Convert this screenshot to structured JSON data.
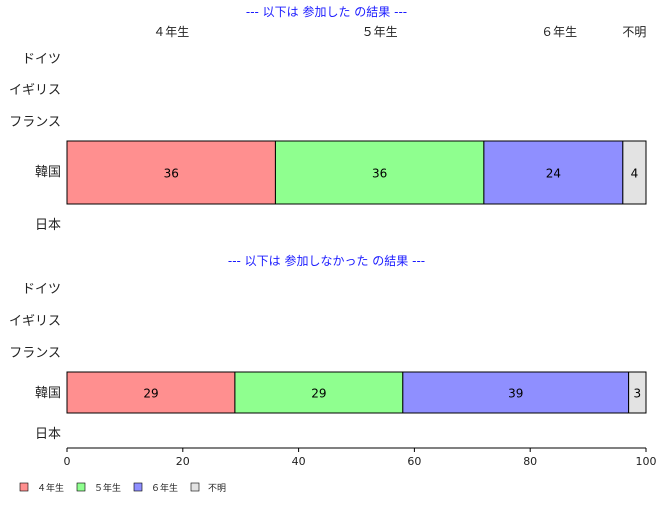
{
  "chart_data": {
    "type": "bar",
    "orientation": "horizontal",
    "stacked": true,
    "categories": [
      "ドイツ",
      "イギリス",
      "フランス",
      "韓国",
      "日本"
    ],
    "xlim": [
      0,
      100
    ],
    "x_ticks": [
      0,
      20,
      40,
      60,
      80,
      100
    ],
    "grid": false,
    "legend_position": "bottom-left",
    "series_names": [
      "４年生",
      "５年生",
      "６年生",
      "不明"
    ],
    "colors": [
      "#ff8f8f",
      "#8fff8f",
      "#8f8fff",
      "#e3e3e3"
    ],
    "panels": [
      {
        "title": "--- 以下は 参加した の結果 ---",
        "column_labels": [
          "４年生",
          "５年生",
          "６年生",
          "不明"
        ],
        "column_label_x": [
          18,
          54,
          85,
          98
        ],
        "bars": [
          {
            "category": "韓国",
            "values": [
              36,
              36,
              24,
              4
            ]
          }
        ]
      },
      {
        "title": "--- 以下は 参加しなかった の結果 ---",
        "bars": [
          {
            "category": "韓国",
            "values": [
              29,
              29,
              39,
              3
            ]
          }
        ]
      }
    ],
    "legend": [
      "４年生",
      "５年生",
      "６年生",
      "不明"
    ]
  }
}
